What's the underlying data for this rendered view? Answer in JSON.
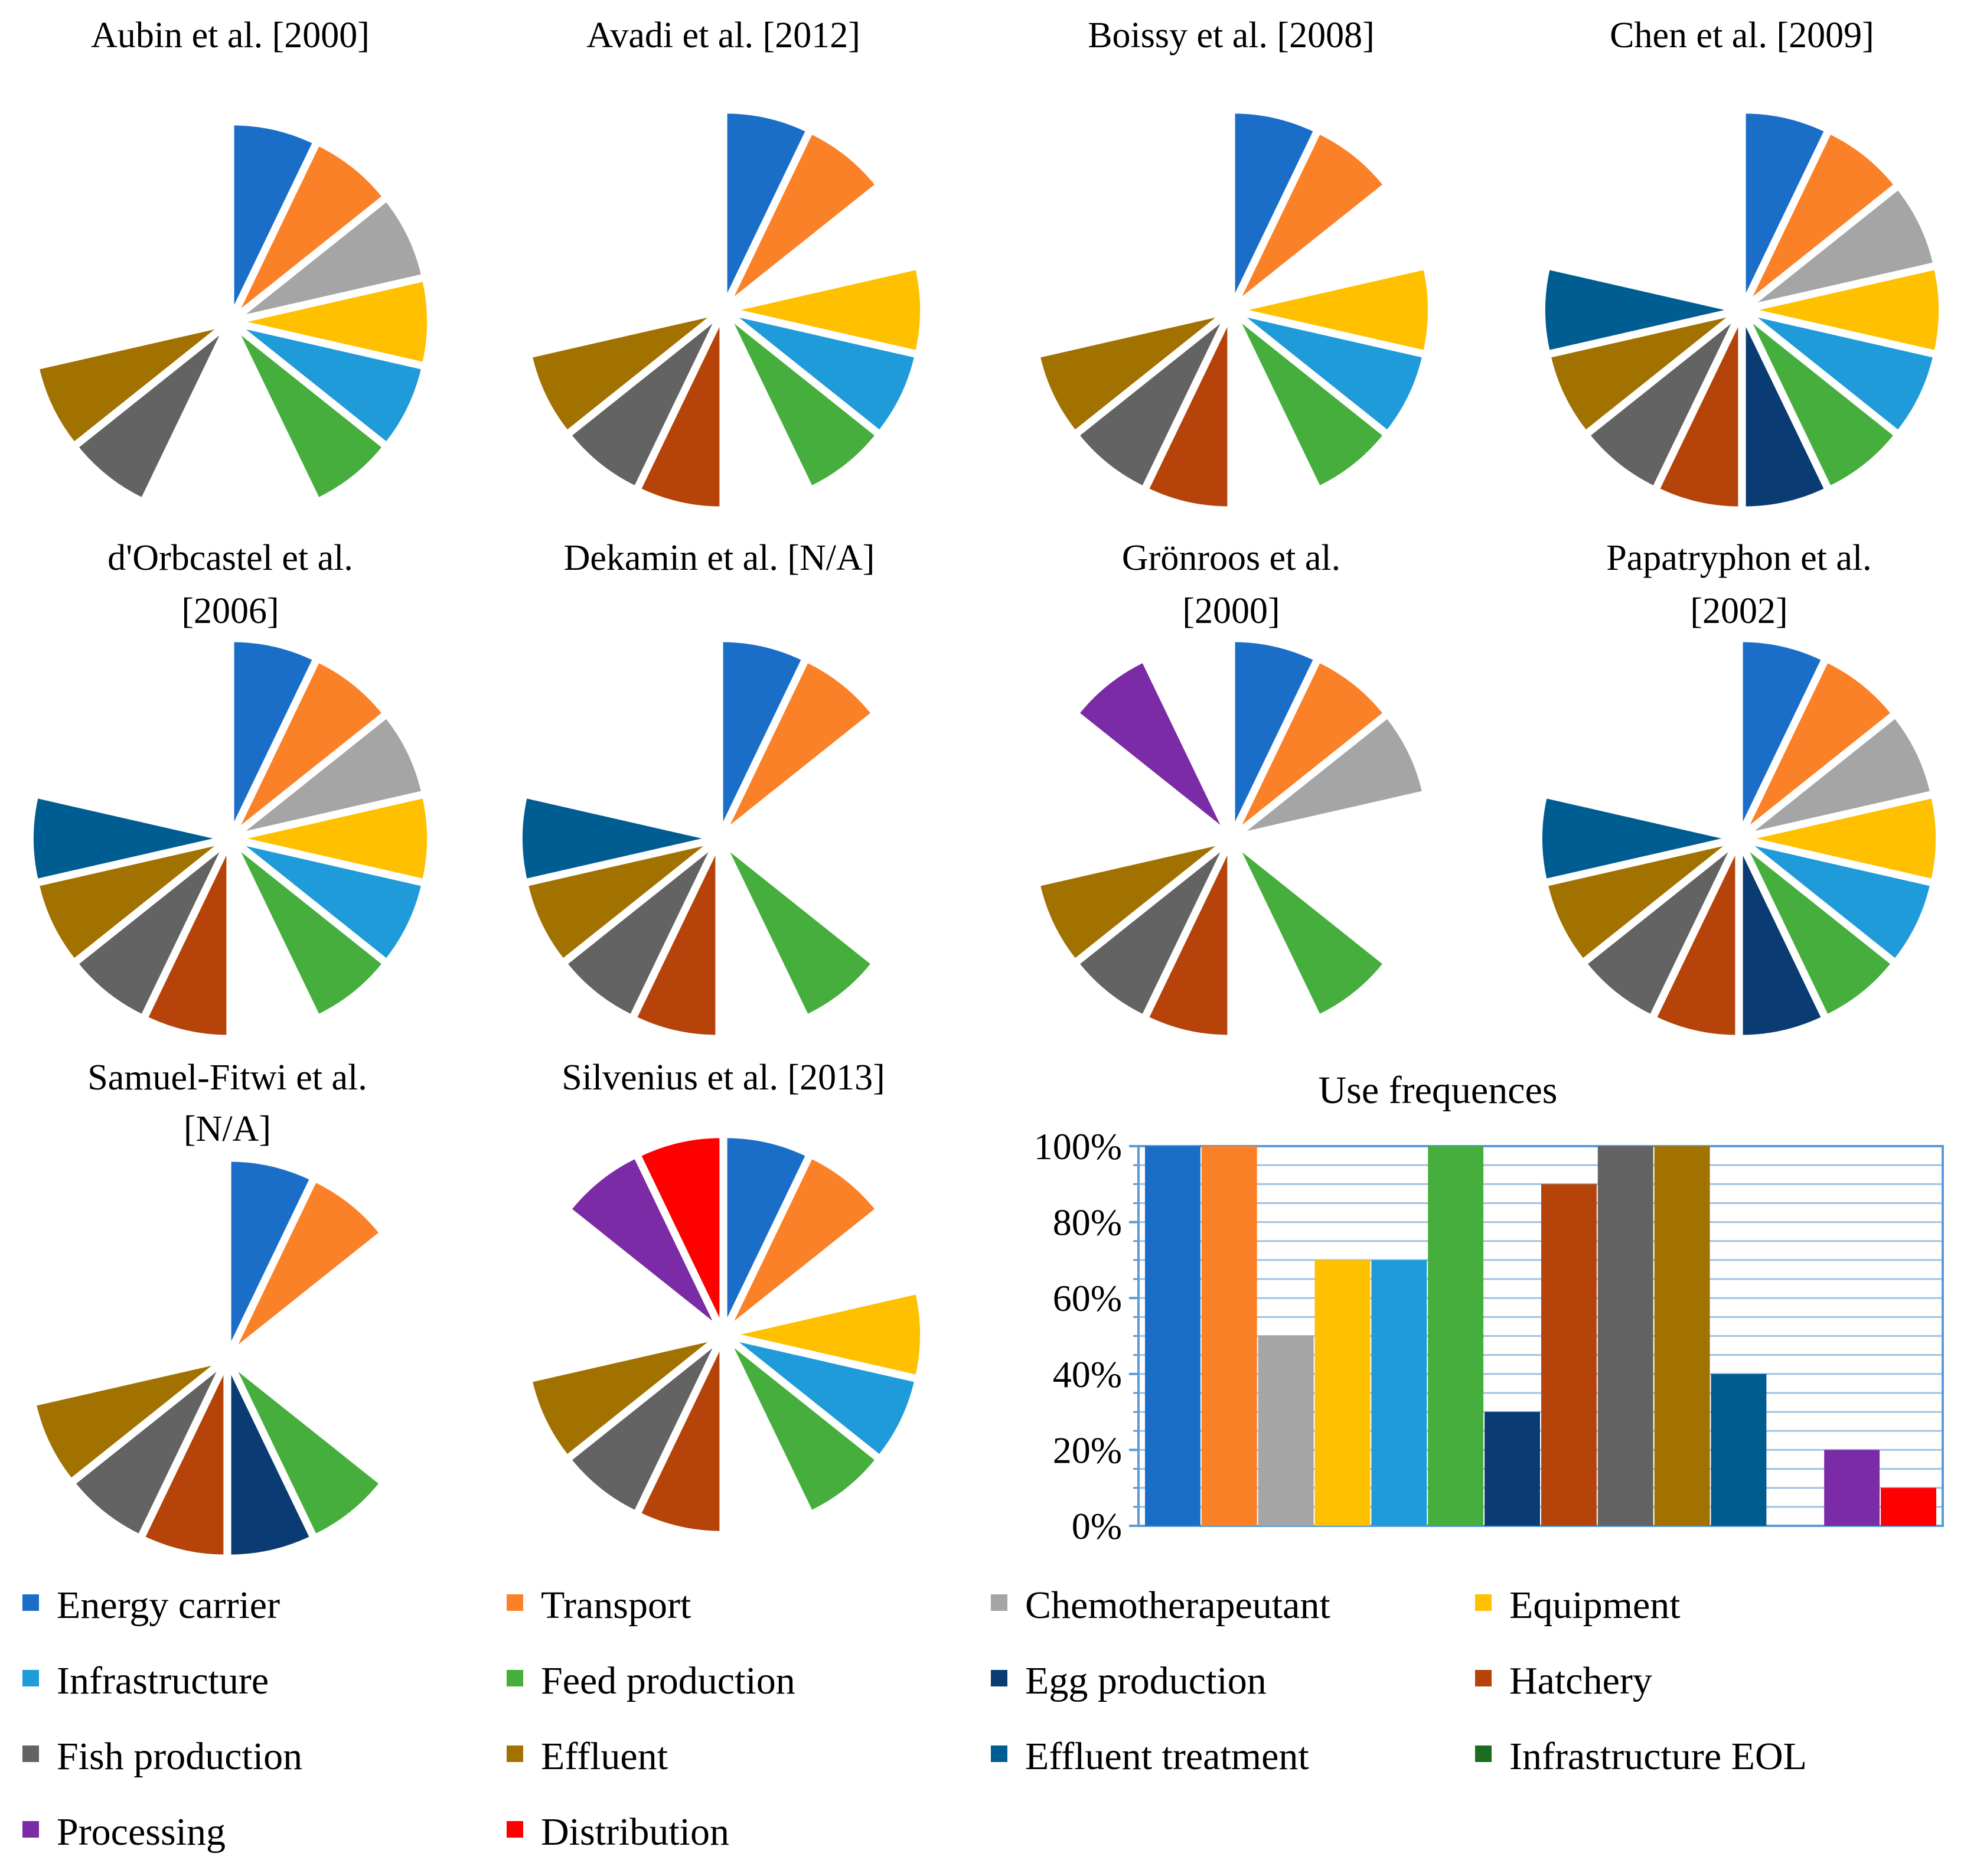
{
  "categories": [
    {
      "name": "Energy carrier",
      "color": "#1B6EC8"
    },
    {
      "name": "Transport",
      "color": "#FB8128"
    },
    {
      "name": "Chemotherapeutant",
      "color": "#A5A5A5"
    },
    {
      "name": "Equipment",
      "color": "#FFC000"
    },
    {
      "name": "Infrastructure",
      "color": "#1F9BD9"
    },
    {
      "name": "Feed production",
      "color": "#45AE3C"
    },
    {
      "name": "Egg production",
      "color": "#0A3C73"
    },
    {
      "name": "Hatchery",
      "color": "#B5430A"
    },
    {
      "name": "Fish production",
      "color": "#636363"
    },
    {
      "name": "Effluent",
      "color": "#A27200"
    },
    {
      "name": "Effluent treatment",
      "color": "#005D92"
    },
    {
      "name": "Infrastructure EOL",
      "color": "#1E6B22"
    },
    {
      "name": "Processing",
      "color": "#7B2BA6"
    },
    {
      "name": "Distribution",
      "color": "#FF0000"
    }
  ],
  "chart_data": [
    {
      "type": "pie",
      "title": "Aubin et al. [2000]",
      "title_lines": [
        "Aubin et al. [2000]"
      ],
      "slices_present": [
        1,
        1,
        1,
        1,
        1,
        1,
        0,
        0,
        1,
        1,
        0,
        0,
        0,
        0
      ]
    },
    {
      "type": "pie",
      "title": "Avadi et al. [2012]",
      "title_lines": [
        "Avadi et al. [2012]"
      ],
      "slices_present": [
        1,
        1,
        0,
        1,
        1,
        1,
        0,
        1,
        1,
        1,
        0,
        0,
        0,
        0
      ]
    },
    {
      "type": "pie",
      "title": "Boissy et al. [2008]",
      "title_lines": [
        "Boissy et al. [2008]"
      ],
      "slices_present": [
        1,
        1,
        0,
        1,
        1,
        1,
        0,
        1,
        1,
        1,
        0,
        0,
        0,
        0
      ]
    },
    {
      "type": "pie",
      "title": "Chen et al. [2009]",
      "title_lines": [
        "Chen et al. [2009]"
      ],
      "slices_present": [
        1,
        1,
        1,
        1,
        1,
        1,
        1,
        1,
        1,
        1,
        1,
        0,
        0,
        0
      ]
    },
    {
      "type": "pie",
      "title": "d'Orbcastel et al. [2006]",
      "title_lines": [
        "d'Orbcastel et al.",
        "[2006]"
      ],
      "slices_present": [
        1,
        1,
        1,
        1,
        1,
        1,
        0,
        1,
        1,
        1,
        1,
        0,
        0,
        0
      ]
    },
    {
      "type": "pie",
      "title": "Dekamin et al. [N/A]",
      "title_lines": [
        "Dekamin et al. [N/A]"
      ],
      "slices_present": [
        1,
        1,
        0,
        0,
        0,
        1,
        0,
        1,
        1,
        1,
        1,
        0,
        0,
        0
      ]
    },
    {
      "type": "pie",
      "title": "Grönroos et al. [2000]",
      "title_lines": [
        "Grönroos et al.",
        "[2000]"
      ],
      "slices_present": [
        1,
        1,
        1,
        0,
        0,
        1,
        0,
        1,
        1,
        1,
        0,
        0,
        1,
        0
      ]
    },
    {
      "type": "pie",
      "title": "Papatryphon et al. [2002]",
      "title_lines": [
        "Papatryphon et al.",
        "[2002]"
      ],
      "slices_present": [
        1,
        1,
        1,
        1,
        1,
        1,
        1,
        1,
        1,
        1,
        1,
        0,
        0,
        0
      ]
    },
    {
      "type": "pie",
      "title": "Samuel-Fitwi et al. [N/A]",
      "title_lines": [
        "Samuel-Fitwi et al.",
        "[N/A]"
      ],
      "slices_present": [
        1,
        1,
        0,
        0,
        0,
        1,
        1,
        1,
        1,
        1,
        0,
        0,
        0,
        0
      ]
    },
    {
      "type": "pie",
      "title": "Silvenius et al. [2013]",
      "title_lines": [
        "Silvenius et al. [2013]"
      ],
      "slices_present": [
        1,
        1,
        0,
        1,
        1,
        1,
        0,
        1,
        1,
        1,
        0,
        0,
        1,
        1
      ]
    },
    {
      "type": "bar",
      "title": "Use frequences",
      "categories": [
        "Energy carrier",
        "Transport",
        "Chemotherapeutant",
        "Equipment",
        "Infrastructure",
        "Feed production",
        "Egg production",
        "Hatchery",
        "Fish production",
        "Effluent",
        "Effluent treatment",
        "Infrastructure EOL",
        "Processing",
        "Distribution"
      ],
      "values": [
        100,
        100,
        50,
        70,
        70,
        100,
        30,
        90,
        100,
        100,
        40,
        0,
        20,
        10
      ],
      "yticks": [
        "0%",
        "20%",
        "40%",
        "60%",
        "80%",
        "100%"
      ],
      "ylim": [
        0,
        100
      ]
    }
  ]
}
